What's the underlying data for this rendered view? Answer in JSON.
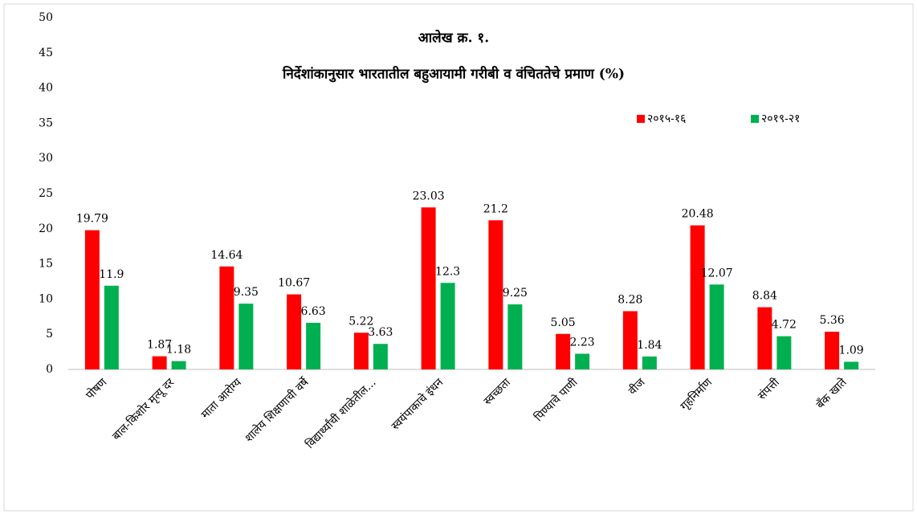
{
  "chart_data": {
    "type": "bar",
    "title": [
      "आलेख क्र. १.",
      "निर्देशांकानुसार भारतातील बहुआयामी गरीबी व वंचिततेचे प्रमाण (%)"
    ],
    "categories": [
      "पोषण",
      "बाल-किशोर मृत्यू दर",
      "माता आरोग्य",
      "शालेय शिक्षणाची वर्षे",
      "विद्यार्थ्यांची शाळेतील...",
      "स्वयंपाकाचे इंधन",
      "स्वच्छता",
      "पिण्याचे पाणी",
      "वीज",
      "गृहनिर्माण",
      "संपत्ती",
      "बँक खाते"
    ],
    "series": [
      {
        "name": "२०१५-१६",
        "color": "#ff0000",
        "values": [
          19.79,
          1.87,
          14.64,
          10.67,
          5.22,
          23.03,
          21.2,
          5.05,
          8.28,
          20.48,
          8.84,
          5.36
        ]
      },
      {
        "name": "२०१९-२१",
        "color": "#00b050",
        "values": [
          11.9,
          1.18,
          9.35,
          6.63,
          3.63,
          12.3,
          9.25,
          2.23,
          1.84,
          12.07,
          4.72,
          1.09
        ]
      }
    ],
    "ylim": [
      0,
      50
    ],
    "yticks": [
      0,
      5,
      10,
      15,
      20,
      25,
      30,
      35,
      40,
      45,
      50
    ],
    "grid": false,
    "legend": "upper right"
  }
}
